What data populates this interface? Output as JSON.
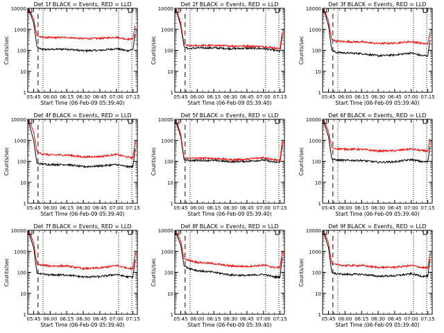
{
  "figure": {
    "panels": [
      {
        "title": "Det 1f  BLACK = Events, RED = LLD"
      },
      {
        "title": "Det 2f  BLACK = Events, RED = LLD"
      },
      {
        "title": "Det 3f  BLACK = Events, RED = LLD"
      },
      {
        "title": "Det 4f  BLACK = Events, RED = LLD"
      },
      {
        "title": "Det 5f  BLACK = Events, RED = LLD"
      },
      {
        "title": "Det 6f  BLACK = Events, RED = LLD"
      },
      {
        "title": "Det 7f  BLACK = Events, RED = LLD"
      },
      {
        "title": "Det 8f  BLACK = Events, RED = LLD"
      },
      {
        "title": "Det 9f  BLACK = Events, RED = LLD"
      }
    ],
    "xlabel": "Start Time (06-Feb-09 05:39:40)",
    "ylabel": "Counts/sec",
    "xticks": [
      "05:45",
      "06:00",
      "06:15",
      "06:30",
      "06:45",
      "07:00",
      "07:15"
    ],
    "yticks": [
      "1",
      "10",
      "100",
      "1000",
      "10000"
    ],
    "colors": {
      "events": "#000000",
      "lld": "#ff0000",
      "axes": "#000000",
      "background": "#ffffff"
    }
  },
  "chart_data": [
    {
      "type": "line",
      "title": "Det 1f  BLACK = Events, RED = LLD",
      "xlabel": "Start Time (06-Feb-09 05:39:40)",
      "ylabel": "Counts/sec",
      "y_scale": "log",
      "xlim": [
        "05:39:40",
        "07:19:00"
      ],
      "ylim": [
        1,
        10000
      ],
      "x": [
        "05:41",
        "05:45",
        "05:48",
        "05:52",
        "06:00",
        "06:15",
        "06:30",
        "06:45",
        "07:00",
        "07:10",
        "07:15",
        "07:17"
      ],
      "series": [
        {
          "name": "Events",
          "color": "#000000",
          "values": [
            8000,
            2000,
            150,
            110,
            110,
            115,
            95,
            100,
            120,
            95,
            110,
            600
          ]
        },
        {
          "name": "LLD",
          "color": "#ff0000",
          "values": [
            9000,
            3000,
            500,
            420,
            400,
            410,
            360,
            370,
            420,
            340,
            350,
            1500
          ]
        }
      ]
    },
    {
      "type": "line",
      "title": "Det 2f  BLACK = Events, RED = LLD",
      "xlabel": "Start Time (06-Feb-09 05:39:40)",
      "ylabel": "Counts/sec",
      "y_scale": "log",
      "xlim": [
        "05:39:40",
        "07:19:00"
      ],
      "ylim": [
        1,
        10000
      ],
      "x": [
        "05:41",
        "05:45",
        "05:48",
        "05:52",
        "06:00",
        "06:15",
        "06:30",
        "06:45",
        "07:00",
        "07:10",
        "07:15",
        "07:17"
      ],
      "series": [
        {
          "name": "Events",
          "color": "#000000",
          "values": [
            8000,
            1500,
            150,
            120,
            130,
            130,
            120,
            125,
            120,
            100,
            90,
            500
          ]
        },
        {
          "name": "LLD",
          "color": "#ff0000",
          "values": [
            9000,
            2000,
            200,
            160,
            170,
            170,
            160,
            160,
            150,
            130,
            120,
            700
          ]
        }
      ]
    },
    {
      "type": "line",
      "title": "Det 3f  BLACK = Events, RED = LLD",
      "xlabel": "Start Time (06-Feb-09 05:39:40)",
      "ylabel": "Counts/sec",
      "y_scale": "log",
      "xlim": [
        "05:39:40",
        "07:19:00"
      ],
      "ylim": [
        1,
        10000
      ],
      "x": [
        "05:41",
        "05:45",
        "05:48",
        "05:52",
        "06:00",
        "06:15",
        "06:30",
        "06:45",
        "07:00",
        "07:10",
        "07:15",
        "07:17"
      ],
      "series": [
        {
          "name": "Events",
          "color": "#000000",
          "values": [
            8000,
            1500,
            100,
            80,
            75,
            70,
            55,
            60,
            75,
            55,
            55,
            300
          ]
        },
        {
          "name": "LLD",
          "color": "#ff0000",
          "values": [
            9000,
            2500,
            320,
            270,
            260,
            250,
            210,
            220,
            260,
            210,
            200,
            700
          ]
        }
      ]
    },
    {
      "type": "line",
      "title": "Det 4f  BLACK = Events, RED = LLD",
      "xlabel": "Start Time (06-Feb-09 05:39:40)",
      "ylabel": "Counts/sec",
      "y_scale": "log",
      "xlim": [
        "05:39:40",
        "07:19:00"
      ],
      "ylim": [
        1,
        10000
      ],
      "x": [
        "05:41",
        "05:45",
        "05:48",
        "05:52",
        "06:00",
        "06:15",
        "06:30",
        "06:45",
        "07:00",
        "07:10",
        "07:15",
        "07:17"
      ],
      "series": [
        {
          "name": "Events",
          "color": "#000000",
          "values": [
            6000,
            1000,
            80,
            75,
            70,
            70,
            55,
            60,
            70,
            55,
            55,
            400
          ]
        },
        {
          "name": "LLD",
          "color": "#ff0000",
          "values": [
            9000,
            2500,
            280,
            230,
            200,
            200,
            160,
            170,
            210,
            160,
            150,
            900
          ]
        }
      ]
    },
    {
      "type": "line",
      "title": "Det 5f  BLACK = Events, RED = LLD",
      "xlabel": "Start Time (06-Feb-09 05:39:40)",
      "ylabel": "Counts/sec",
      "y_scale": "log",
      "xlim": [
        "05:39:40",
        "07:19:00"
      ],
      "ylim": [
        1,
        10000
      ],
      "x": [
        "05:41",
        "05:45",
        "05:48",
        "05:52",
        "06:00",
        "06:15",
        "06:30",
        "06:45",
        "07:00",
        "07:10",
        "07:15",
        "07:17"
      ],
      "series": [
        {
          "name": "Events",
          "color": "#000000",
          "values": [
            7000,
            1500,
            120,
            110,
            110,
            110,
            95,
            100,
            115,
            90,
            90,
            600
          ]
        },
        {
          "name": "LLD",
          "color": "#ff0000",
          "values": [
            9000,
            2000,
            150,
            140,
            140,
            140,
            120,
            125,
            150,
            120,
            110,
            900
          ]
        }
      ]
    },
    {
      "type": "line",
      "title": "Det 6f  BLACK = Events, RED = LLD",
      "xlabel": "Start Time (06-Feb-09 05:39:40)",
      "ylabel": "Counts/sec",
      "y_scale": "log",
      "xlim": [
        "05:39:40",
        "07:19:00"
      ],
      "ylim": [
        1,
        10000
      ],
      "x": [
        "05:41",
        "05:45",
        "05:48",
        "05:52",
        "06:00",
        "06:15",
        "06:30",
        "06:45",
        "07:00",
        "07:10",
        "07:15",
        "07:17"
      ],
      "series": [
        {
          "name": "Events",
          "color": "#000000",
          "values": [
            7000,
            1500,
            130,
            115,
            110,
            110,
            90,
            95,
            120,
            95,
            95,
            500
          ]
        },
        {
          "name": "LLD",
          "color": "#ff0000",
          "values": [
            9000,
            2500,
            450,
            400,
            380,
            370,
            310,
            320,
            390,
            320,
            310,
            1200
          ]
        }
      ]
    },
    {
      "type": "line",
      "title": "Det 7f  BLACK = Events, RED = LLD",
      "xlabel": "Start Time (06-Feb-09 05:39:40)",
      "ylabel": "Counts/sec",
      "y_scale": "log",
      "xlim": [
        "05:39:40",
        "07:19:00"
      ],
      "ylim": [
        1,
        10000
      ],
      "x": [
        "05:41",
        "05:45",
        "05:48",
        "05:52",
        "06:00",
        "06:15",
        "06:30",
        "06:45",
        "07:00",
        "07:10",
        "07:15",
        "07:17"
      ],
      "series": [
        {
          "name": "Events",
          "color": "#000000",
          "values": [
            7000,
            1500,
            90,
            80,
            75,
            75,
            60,
            62,
            80,
            60,
            60,
            400
          ]
        },
        {
          "name": "LLD",
          "color": "#ff0000",
          "values": [
            9000,
            2500,
            250,
            220,
            200,
            200,
            150,
            160,
            210,
            160,
            150,
            900
          ]
        }
      ]
    },
    {
      "type": "line",
      "title": "Det 8f  BLACK = Events, RED = LLD",
      "xlabel": "Start Time (06-Feb-09 05:39:40)",
      "ylabel": "Counts/sec",
      "y_scale": "log",
      "xlim": [
        "05:39:40",
        "07:19:00"
      ],
      "ylim": [
        1,
        10000
      ],
      "x": [
        "05:41",
        "05:45",
        "05:48",
        "05:52",
        "06:00",
        "06:15",
        "06:30",
        "06:45",
        "07:00",
        "07:10",
        "07:15",
        "07:17"
      ],
      "series": [
        {
          "name": "Events",
          "color": "#000000",
          "values": [
            7000,
            2000,
            200,
            160,
            120,
            100,
            75,
            70,
            80,
            60,
            60,
            500
          ]
        },
        {
          "name": "LLD",
          "color": "#ff0000",
          "values": [
            9000,
            3000,
            450,
            380,
            300,
            260,
            200,
            190,
            220,
            170,
            170,
            1000
          ]
        }
      ]
    },
    {
      "type": "line",
      "title": "Det 9f  BLACK = Events, RED = LLD",
      "xlabel": "Start Time (06-Feb-09 05:39:40)",
      "ylabel": "Counts/sec",
      "y_scale": "log",
      "xlim": [
        "05:39:40",
        "07:19:00"
      ],
      "ylim": [
        1,
        10000
      ],
      "x": [
        "05:41",
        "05:45",
        "05:48",
        "05:52",
        "06:00",
        "06:15",
        "06:30",
        "06:45",
        "07:00",
        "07:10",
        "07:15",
        "07:17"
      ],
      "series": [
        {
          "name": "Events",
          "color": "#000000",
          "values": [
            7000,
            1500,
            100,
            85,
            80,
            80,
            65,
            68,
            85,
            65,
            65,
            400
          ]
        },
        {
          "name": "LLD",
          "color": "#ff0000",
          "values": [
            9000,
            2500,
            260,
            230,
            210,
            210,
            170,
            175,
            210,
            170,
            160,
            800
          ]
        }
      ]
    }
  ]
}
